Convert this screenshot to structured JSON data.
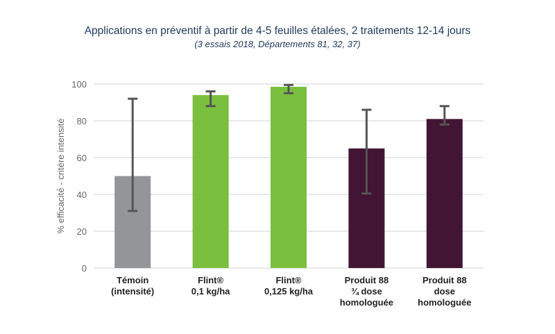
{
  "chart_data": {
    "type": "bar",
    "title": "Applications en préventif à partir de 4-5 feuilles étalées, 2 traitements 12-14 jours",
    "subtitle": "(3 essais 2018, Départements 81, 32, 37)",
    "xlabel": "",
    "ylabel": "% efficacité - critère intensité",
    "ylim": [
      0,
      100
    ],
    "yticks": [
      0,
      20,
      40,
      60,
      80,
      100
    ],
    "grid": true,
    "categories": [
      [
        "Témoin",
        "(intensité)"
      ],
      [
        "Flint®",
        "0,1 kg/ha"
      ],
      [
        "Flint®",
        "0,125 kg/ha"
      ],
      [
        "Produit 88",
        "¾ dose",
        "homologuée"
      ],
      [
        "Produit 88",
        "dose",
        "homologuée"
      ]
    ],
    "values": [
      50,
      94,
      98.5,
      65,
      81
    ],
    "error_low": [
      31,
      88,
      95,
      40.5,
      78
    ],
    "error_high": [
      92,
      96,
      99.5,
      86,
      88
    ],
    "colors": [
      "#939598",
      "#7bbf3f",
      "#7bbf3f",
      "#431535",
      "#431535"
    ],
    "grid_color": "#d9d9d9",
    "error_color": "#555555"
  }
}
